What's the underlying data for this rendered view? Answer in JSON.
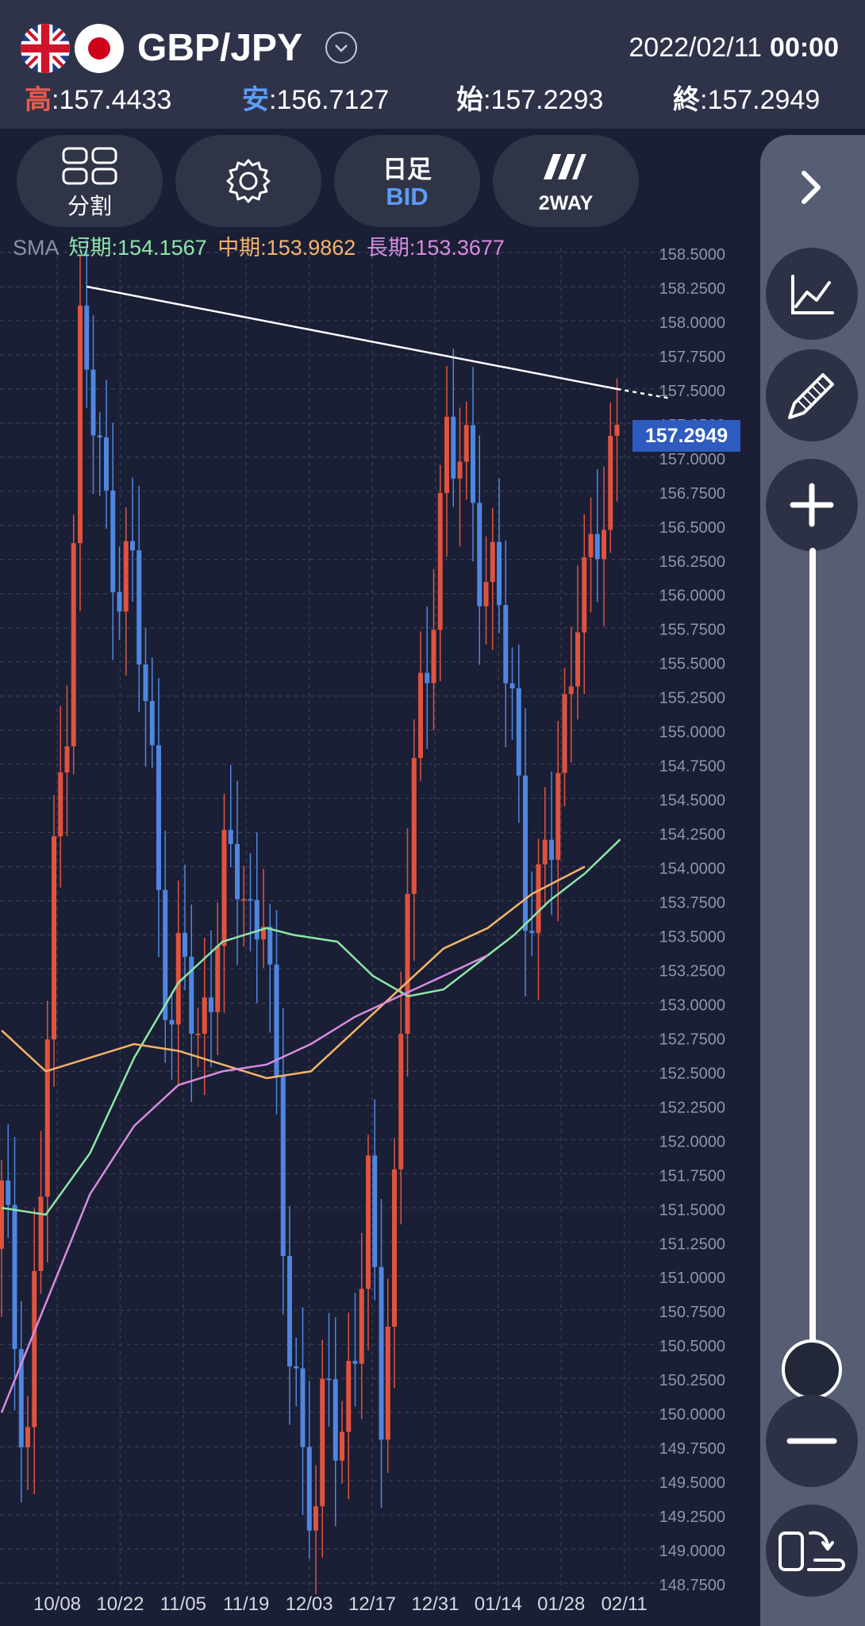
{
  "header": {
    "pair": "GBP/JPY",
    "date": "2022/02/11",
    "time": "00:00",
    "high_label": "高",
    "high_value": ":157.4433",
    "low_label": "安",
    "low_value": ":156.7127",
    "open_label": "始",
    "open_value": ":157.2293",
    "close_label": "終",
    "close_value": ":157.2949"
  },
  "toolbar": {
    "split_label": "分割",
    "timeframe_label": "日足",
    "price_type": "BID",
    "mode_label": "2WAY"
  },
  "sma": {
    "label": "SMA",
    "short_label": "短期:154.1567",
    "mid_label": "中期:153.9862",
    "long_label": "長期:153.3677",
    "short_color": "#8ee6a8",
    "mid_color": "#f5b46a",
    "long_color": "#d88be0"
  },
  "current_price": "157.2949",
  "chart_data": {
    "type": "candlestick",
    "y_ticks": [
      "158.5000",
      "158.2500",
      "158.0000",
      "157.7500",
      "157.5000",
      "157.2500",
      "157.0000",
      "156.7500",
      "156.5000",
      "156.2500",
      "156.0000",
      "155.7500",
      "155.5000",
      "155.2500",
      "155.0000",
      "154.7500",
      "154.5000",
      "154.2500",
      "154.0000",
      "153.7500",
      "153.5000",
      "153.2500",
      "153.0000",
      "152.7500",
      "152.5000",
      "152.2500",
      "152.0000",
      "151.7500",
      "151.5000",
      "151.2500",
      "151.0000",
      "150.7500",
      "150.5000",
      "150.2500",
      "150.0000",
      "149.7500",
      "149.5000",
      "149.2500",
      "149.0000",
      "148.7500"
    ],
    "ylim": [
      148.75,
      158.5
    ],
    "x_ticks": [
      "10/08",
      "10/22",
      "11/05",
      "11/19",
      "12/03",
      "12/17",
      "12/31",
      "01/14",
      "01/28",
      "02/11"
    ],
    "up_color": "#e0533e",
    "down_color": "#4f86e0",
    "close_path": [
      [
        0,
        151.5
      ],
      [
        2,
        150.6
      ],
      [
        4,
        149.9
      ],
      [
        6,
        151.7
      ],
      [
        8,
        153.8
      ],
      [
        10,
        155.4
      ],
      [
        12,
        157.8
      ],
      [
        14,
        157.3
      ],
      [
        16,
        156.5
      ],
      [
        18,
        156.3
      ],
      [
        20,
        156.0
      ],
      [
        22,
        155.2
      ],
      [
        24,
        154.0
      ],
      [
        26,
        152.8
      ],
      [
        28,
        153.3
      ],
      [
        30,
        152.6
      ],
      [
        32,
        153.4
      ],
      [
        34,
        153.8
      ],
      [
        36,
        154.0
      ],
      [
        38,
        153.6
      ],
      [
        40,
        153.9
      ],
      [
        42,
        152.0
      ],
      [
        44,
        150.6
      ],
      [
        46,
        149.8
      ],
      [
        48,
        149.2
      ],
      [
        50,
        150.2
      ],
      [
        52,
        149.9
      ],
      [
        54,
        150.6
      ],
      [
        56,
        151.4
      ],
      [
        58,
        150.2
      ],
      [
        60,
        151.6
      ],
      [
        62,
        154.0
      ],
      [
        64,
        155.0
      ],
      [
        66,
        156.2
      ],
      [
        68,
        157.1
      ],
      [
        70,
        156.9
      ],
      [
        72,
        156.7
      ],
      [
        74,
        156.2
      ],
      [
        76,
        155.9
      ],
      [
        78,
        155.0
      ],
      [
        80,
        154.0
      ],
      [
        82,
        153.7
      ],
      [
        84,
        154.2
      ],
      [
        86,
        155.0
      ],
      [
        88,
        156.2
      ],
      [
        90,
        156.0
      ],
      [
        92,
        156.6
      ],
      [
        94,
        157.29
      ]
    ],
    "sma_short": [
      [
        0,
        151.5
      ],
      [
        5,
        151.45
      ],
      [
        10,
        151.9
      ],
      [
        15,
        152.6
      ],
      [
        20,
        153.15
      ],
      [
        25,
        153.45
      ],
      [
        30,
        153.55
      ],
      [
        33,
        153.5
      ],
      [
        38,
        153.45
      ],
      [
        42,
        153.2
      ],
      [
        46,
        153.05
      ],
      [
        50,
        153.1
      ],
      [
        54,
        153.3
      ],
      [
        58,
        153.5
      ],
      [
        62,
        153.75
      ],
      [
        66,
        153.95
      ],
      [
        70,
        154.2
      ]
    ],
    "sma_mid": [
      [
        0,
        152.8
      ],
      [
        5,
        152.5
      ],
      [
        10,
        152.6
      ],
      [
        15,
        152.7
      ],
      [
        20,
        152.65
      ],
      [
        25,
        152.55
      ],
      [
        30,
        152.45
      ],
      [
        35,
        152.5
      ],
      [
        40,
        152.8
      ],
      [
        45,
        153.1
      ],
      [
        50,
        153.4
      ],
      [
        55,
        153.55
      ],
      [
        60,
        153.8
      ],
      [
        66,
        154.0
      ]
    ],
    "sma_long": [
      [
        0,
        150.0
      ],
      [
        5,
        150.8
      ],
      [
        10,
        151.6
      ],
      [
        15,
        152.1
      ],
      [
        20,
        152.4
      ],
      [
        25,
        152.5
      ],
      [
        30,
        152.55
      ],
      [
        35,
        152.7
      ],
      [
        40,
        152.9
      ],
      [
        45,
        153.05
      ],
      [
        50,
        153.2
      ],
      [
        55,
        153.35
      ]
    ],
    "trendline": [
      [
        13,
        158.25
      ],
      [
        94,
        157.5
      ]
    ]
  }
}
